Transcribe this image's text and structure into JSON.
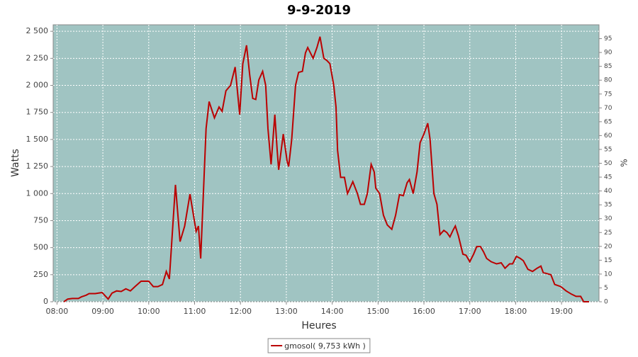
{
  "chart_data": {
    "type": "line",
    "title": "9-9-2019",
    "x_label": "Heures",
    "y_label": "Watts",
    "y2_label": "%",
    "x": [
      "08:09",
      "08:14",
      "08:20",
      "08:28",
      "08:32",
      "08:38",
      "08:42",
      "08:50",
      "08:59",
      "09:07",
      "09:12",
      "09:18",
      "09:24",
      "09:30",
      "09:36",
      "09:42",
      "09:50",
      "10:00",
      "10:06",
      "10:12",
      "10:18",
      "10:23",
      "10:27",
      "10:35",
      "10:41",
      "10:47",
      "10:54",
      "11:02",
      "11:05",
      "11:08",
      "11:15",
      "11:19",
      "11:26",
      "11:32",
      "11:36",
      "11:41",
      "11:47",
      "11:53",
      "11:59",
      "12:03",
      "12:08",
      "12:12",
      "12:16",
      "12:20",
      "12:24",
      "12:29",
      "12:33",
      "12:36",
      "12:40",
      "12:45",
      "12:48",
      "12:50",
      "12:56",
      "13:01",
      "13:03",
      "13:07",
      "13:12",
      "13:16",
      "13:21",
      "13:25",
      "13:28",
      "13:35",
      "13:40",
      "13:44",
      "13:49",
      "13:53",
      "13:57",
      "14:02",
      "14:05",
      "14:07",
      "14:11",
      "14:16",
      "14:20",
      "14:27",
      "14:33",
      "14:37",
      "14:42",
      "14:46",
      "14:51",
      "14:55",
      "14:57",
      "15:02",
      "15:07",
      "15:12",
      "15:18",
      "15:23",
      "15:28",
      "15:33",
      "15:38",
      "15:41",
      "15:46",
      "15:51",
      "15:55",
      "16:00",
      "16:05",
      "16:08",
      "16:13",
      "16:17",
      "16:21",
      "16:26",
      "16:30",
      "16:34",
      "16:38",
      "16:41",
      "16:45",
      "16:51",
      "16:55",
      "17:00",
      "17:05",
      "17:09",
      "17:14",
      "17:18",
      "17:22",
      "17:28",
      "17:35",
      "17:41",
      "17:46",
      "17:52",
      "17:56",
      "18:01",
      "18:06",
      "18:10",
      "18:16",
      "18:22",
      "18:28",
      "18:33",
      "18:36",
      "18:41",
      "18:46",
      "18:51",
      "18:59",
      "19:06",
      "19:13",
      "19:19",
      "19:25",
      "19:29",
      "19:36"
    ],
    "series": [
      {
        "name": "gmosol( 9,753 kWh )",
        "color": "#bb0000",
        "values": [
          0,
          25,
          30,
          30,
          45,
          60,
          75,
          75,
          85,
          25,
          80,
          100,
          95,
          120,
          100,
          140,
          190,
          190,
          140,
          140,
          160,
          280,
          210,
          1080,
          556,
          700,
          995,
          650,
          700,
          400,
          1600,
          1850,
          1700,
          1800,
          1760,
          1950,
          2000,
          2170,
          1730,
          2200,
          2370,
          2100,
          1880,
          1870,
          2050,
          2130,
          2000,
          1600,
          1270,
          1730,
          1400,
          1220,
          1550,
          1300,
          1250,
          1500,
          2000,
          2120,
          2130,
          2300,
          2350,
          2250,
          2350,
          2450,
          2250,
          2230,
          2200,
          2000,
          1800,
          1400,
          1150,
          1150,
          1000,
          1110,
          1000,
          900,
          900,
          1000,
          1270,
          1200,
          1050,
          1000,
          800,
          710,
          670,
          800,
          990,
          980,
          1100,
          1130,
          1000,
          1200,
          1470,
          1550,
          1650,
          1500,
          1000,
          900,
          620,
          660,
          640,
          600,
          660,
          700,
          610,
          440,
          430,
          370,
          440,
          510,
          510,
          460,
          400,
          370,
          350,
          360,
          310,
          350,
          350,
          420,
          400,
          380,
          300,
          280,
          310,
          330,
          270,
          260,
          250,
          160,
          140,
          100,
          70,
          50,
          50,
          0,
          0
        ]
      }
    ],
    "xlim": [
      "07:55",
      "19:49"
    ],
    "xticks": [
      "08:00",
      "09:00",
      "10:00",
      "11:00",
      "12:00",
      "13:00",
      "14:00",
      "15:00",
      "16:00",
      "17:00",
      "18:00",
      "19:00"
    ],
    "ylim": [
      0,
      2560
    ],
    "yticks": [
      0,
      250,
      500,
      750,
      {
        "value": 1000,
        "label": "1 000"
      },
      {
        "value": 1250,
        "label": "1 250"
      },
      {
        "value": 1500,
        "label": "1 500"
      },
      {
        "value": 1750,
        "label": "1 750"
      },
      {
        "value": 2000,
        "label": "2 000"
      },
      {
        "value": 2250,
        "label": "2 250"
      },
      {
        "value": 2500,
        "label": "2 500"
      }
    ],
    "y2lim": [
      0,
      100
    ],
    "y2ticks": [
      0,
      5,
      10,
      15,
      20,
      25,
      30,
      35,
      40,
      45,
      50,
      55,
      60,
      65,
      70,
      75,
      80,
      85,
      90,
      95
    ],
    "grid": true,
    "background": "#a0c4c2",
    "legend": "bottom"
  }
}
